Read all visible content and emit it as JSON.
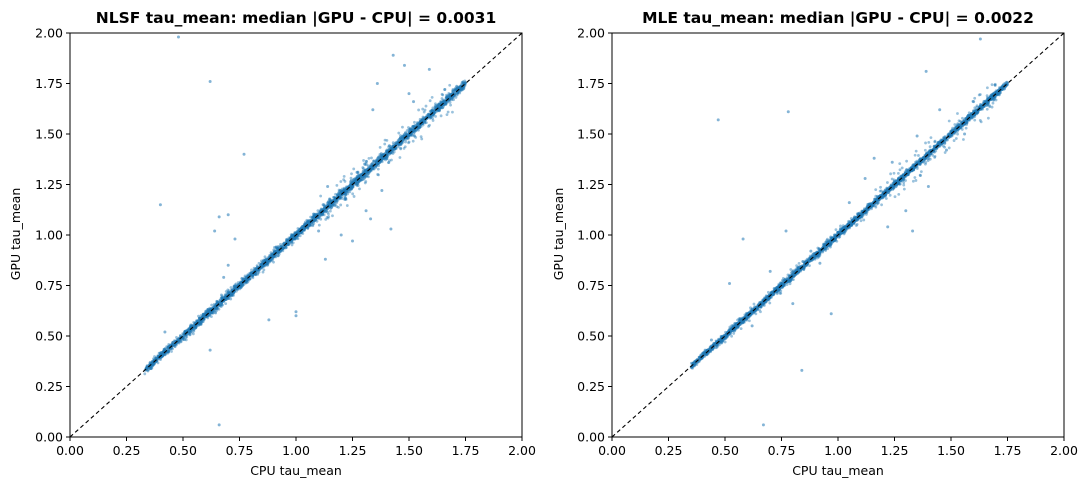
{
  "chart_data": [
    {
      "type": "scatter",
      "title": "NLSF tau_mean: median |GPU - CPU| = 0.0031",
      "xlabel": "CPU tau_mean",
      "ylabel": "GPU tau_mean",
      "xlim": [
        0.0,
        2.0
      ],
      "ylim": [
        0.0,
        2.0
      ],
      "xticks": [
        "0.00",
        "0.25",
        "0.50",
        "0.75",
        "1.00",
        "1.25",
        "1.50",
        "1.75",
        "2.00"
      ],
      "yticks": [
        "0.00",
        "0.25",
        "0.50",
        "0.75",
        "1.00",
        "1.25",
        "1.50",
        "1.75",
        "2.00"
      ],
      "grid": false,
      "reference_line": "y = x (black dashed)",
      "point_color": "#1f77b4",
      "dense_band": {
        "x_min": 0.33,
        "x_max": 1.75,
        "spread": 0.02
      },
      "points": [
        [
          0.48,
          1.98
        ],
        [
          0.62,
          1.76
        ],
        [
          0.4,
          1.15
        ],
        [
          0.77,
          1.4
        ],
        [
          0.64,
          1.02
        ],
        [
          0.73,
          0.98
        ],
        [
          0.66,
          1.09
        ],
        [
          0.7,
          1.1
        ],
        [
          1.0,
          0.62
        ],
        [
          1.0,
          0.6
        ],
        [
          0.66,
          0.06
        ],
        [
          0.62,
          0.43
        ],
        [
          1.43,
          1.89
        ],
        [
          1.48,
          1.84
        ],
        [
          1.59,
          1.82
        ],
        [
          1.34,
          1.62
        ],
        [
          1.36,
          1.75
        ],
        [
          1.14,
          1.24
        ],
        [
          1.12,
          1.15
        ],
        [
          1.13,
          0.88
        ],
        [
          1.42,
          1.03
        ],
        [
          1.25,
          0.97
        ],
        [
          1.2,
          1.0
        ],
        [
          1.33,
          1.08
        ],
        [
          0.7,
          0.85
        ],
        [
          0.88,
          0.58
        ],
        [
          0.68,
          0.79
        ],
        [
          1.38,
          1.22
        ],
        [
          1.31,
          1.12
        ],
        [
          0.42,
          0.52
        ],
        [
          1.46,
          1.46
        ],
        [
          1.52,
          1.66
        ],
        [
          1.5,
          1.7
        ],
        [
          1.27,
          1.31
        ],
        [
          1.22,
          1.18
        ],
        [
          1.1,
          1.02
        ]
      ]
    },
    {
      "type": "scatter",
      "title": "MLE tau_mean: median |GPU - CPU| = 0.0022",
      "xlabel": "CPU tau_mean",
      "ylabel": "GPU tau_mean",
      "xlim": [
        0.0,
        2.0
      ],
      "ylim": [
        0.0,
        2.0
      ],
      "xticks": [
        "0.00",
        "0.25",
        "0.50",
        "0.75",
        "1.00",
        "1.25",
        "1.50",
        "1.75",
        "2.00"
      ],
      "yticks": [
        "0.00",
        "0.25",
        "0.50",
        "0.75",
        "1.00",
        "1.25",
        "1.50",
        "1.75",
        "2.00"
      ],
      "grid": false,
      "reference_line": "y = x (black dashed)",
      "point_color": "#1f77b4",
      "dense_band": {
        "x_min": 0.35,
        "x_max": 1.75,
        "spread": 0.015
      },
      "points": [
        [
          0.47,
          1.57
        ],
        [
          0.78,
          1.61
        ],
        [
          1.63,
          1.97
        ],
        [
          1.39,
          1.81
        ],
        [
          0.84,
          0.33
        ],
        [
          0.67,
          0.06
        ],
        [
          0.97,
          0.61
        ],
        [
          0.52,
          0.76
        ],
        [
          0.58,
          0.98
        ],
        [
          0.77,
          1.02
        ],
        [
          1.16,
          1.38
        ],
        [
          1.24,
          1.36
        ],
        [
          1.45,
          1.62
        ],
        [
          1.53,
          1.55
        ],
        [
          1.3,
          1.12
        ],
        [
          1.33,
          1.02
        ],
        [
          1.22,
          1.04
        ],
        [
          0.7,
          0.82
        ],
        [
          0.88,
          0.92
        ],
        [
          1.05,
          1.16
        ],
        [
          1.4,
          1.24
        ],
        [
          1.12,
          1.28
        ],
        [
          1.56,
          1.5
        ],
        [
          1.6,
          1.66
        ],
        [
          0.62,
          0.55
        ],
        [
          0.44,
          0.48
        ],
        [
          0.92,
          0.86
        ],
        [
          1.48,
          1.42
        ],
        [
          0.8,
          0.66
        ],
        [
          1.35,
          1.49
        ]
      ]
    }
  ]
}
